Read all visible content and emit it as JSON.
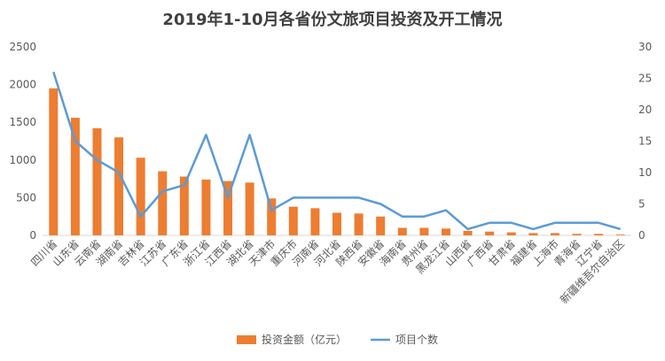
{
  "chart_data": {
    "type": "bar+line",
    "title": "2019年1-10月各省份文旅项目投资及开工情况",
    "categories": [
      "四川省",
      "山东省",
      "云南省",
      "湖南省",
      "吉林省",
      "江苏省",
      "广东省",
      "浙江省",
      "江西省",
      "湖北省",
      "天津市",
      "重庆市",
      "河南省",
      "河北省",
      "陕西省",
      "安徽省",
      "海南省",
      "贵州省",
      "黑龙江省",
      "山西省",
      "广西省",
      "甘肃省",
      "福建省",
      "上海市",
      "青海省",
      "辽宁省",
      "新疆维吾尔自治区"
    ],
    "y_left": {
      "min": 0,
      "max": 2500,
      "ticks": [
        0,
        500,
        1000,
        1500,
        2000,
        2500
      ]
    },
    "y_right": {
      "min": 0,
      "max": 30,
      "ticks": [
        0,
        5,
        10,
        15,
        20,
        25,
        30
      ]
    },
    "series": [
      {
        "name": "投资金额（亿元）",
        "type": "bar",
        "axis": "left",
        "color": "#ED7D31",
        "values": [
          1950,
          1560,
          1420,
          1300,
          1030,
          850,
          780,
          740,
          720,
          700,
          490,
          380,
          360,
          300,
          290,
          250,
          100,
          100,
          90,
          60,
          50,
          40,
          30,
          30,
          20,
          20,
          10
        ]
      },
      {
        "name": "项目个数",
        "type": "line",
        "axis": "right",
        "color": "#5B9BD5",
        "values": [
          26,
          15,
          12,
          10,
          3,
          7,
          8,
          16,
          6,
          16,
          4,
          6,
          6,
          6,
          6,
          5,
          3,
          3,
          4,
          1,
          2,
          2,
          1,
          2,
          2,
          2,
          1
        ]
      }
    ],
    "grid": false,
    "legend_position": "bottom"
  }
}
